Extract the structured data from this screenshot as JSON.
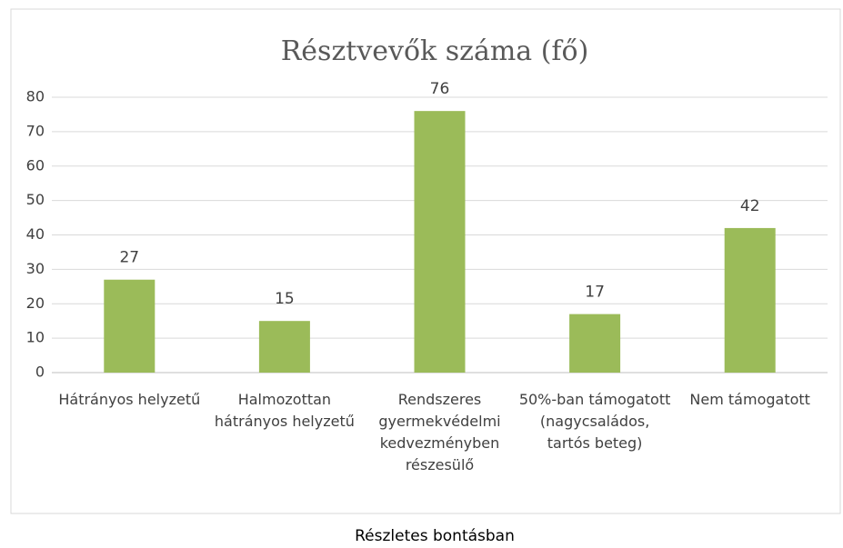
{
  "chart_data": {
    "type": "bar",
    "title": "Résztvevők száma (fő)",
    "categories": [
      "Hátrányos helyzetű",
      "Halmozottan hátrányos helyzetű",
      "Rendszeres gyermekvédelmi kedvezményben részesülő",
      "50%-ban támogatott (nagycsaládos, tartós beteg)",
      "Nem támogatott"
    ],
    "values": [
      27,
      15,
      76,
      17,
      42
    ],
    "color": "#9bbb59",
    "ylim": [
      0,
      80
    ],
    "yticks": [
      0,
      10,
      20,
      30,
      40,
      50,
      60,
      70,
      80
    ],
    "grid": true,
    "caption": "Részletes bontásban"
  }
}
